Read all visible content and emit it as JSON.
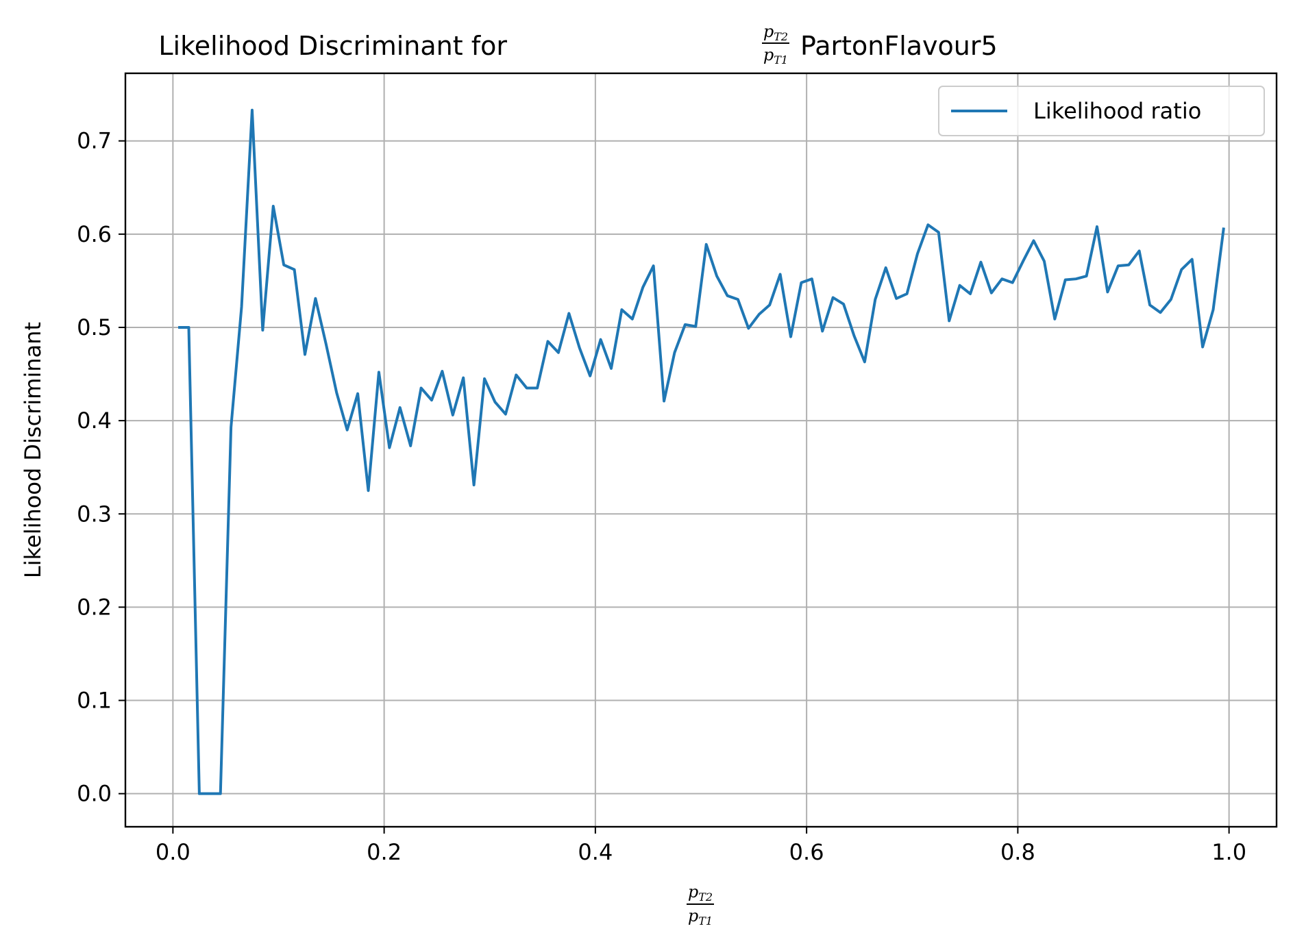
{
  "chart_data": {
    "type": "line",
    "title_prefix": "Likelihood Discriminant for",
    "title_suffix": "PartonFlavour5",
    "fraction": {
      "numerator": "p",
      "numerator_sub": "T2",
      "denominator": "p",
      "denominator_sub": "T1"
    },
    "xlabel_fraction": {
      "numerator": "p",
      "numerator_sub": "T2",
      "denominator": "p",
      "denominator_sub": "T1"
    },
    "ylabel": "Likelihood Discriminant",
    "xlim": [
      -0.045,
      1.045
    ],
    "ylim": [
      -0.0355,
      0.7725
    ],
    "xticks": [
      0.0,
      0.2,
      0.4,
      0.6,
      0.8,
      1.0
    ],
    "xtick_labels": [
      "0.0",
      "0.2",
      "0.4",
      "0.6",
      "0.8",
      "1.0"
    ],
    "yticks": [
      0.0,
      0.1,
      0.2,
      0.3,
      0.4,
      0.5,
      0.6,
      0.7
    ],
    "ytick_labels": [
      "0.0",
      "0.1",
      "0.2",
      "0.3",
      "0.4",
      "0.5",
      "0.6",
      "0.7"
    ],
    "grid": true,
    "legend_position": "upper right",
    "series": [
      {
        "name": "Likelihood ratio",
        "color": "#1f77b4",
        "x": [
          0.005,
          0.015,
          0.025,
          0.035,
          0.045,
          0.055,
          0.065,
          0.075,
          0.085,
          0.095,
          0.105,
          0.115,
          0.125,
          0.135,
          0.145,
          0.155,
          0.165,
          0.175,
          0.185,
          0.195,
          0.205,
          0.215,
          0.225,
          0.235,
          0.245,
          0.255,
          0.265,
          0.275,
          0.285,
          0.295,
          0.305,
          0.315,
          0.325,
          0.335,
          0.345,
          0.355,
          0.365,
          0.375,
          0.385,
          0.395,
          0.405,
          0.415,
          0.425,
          0.435,
          0.445,
          0.455,
          0.465,
          0.475,
          0.485,
          0.495,
          0.505,
          0.515,
          0.525,
          0.535,
          0.545,
          0.555,
          0.565,
          0.575,
          0.585,
          0.595,
          0.605,
          0.615,
          0.625,
          0.635,
          0.645,
          0.655,
          0.665,
          0.675,
          0.685,
          0.695,
          0.705,
          0.715,
          0.725,
          0.735,
          0.745,
          0.755,
          0.765,
          0.775,
          0.785,
          0.795,
          0.805,
          0.815,
          0.825,
          0.835,
          0.845,
          0.855,
          0.865,
          0.875,
          0.885,
          0.895,
          0.905,
          0.915,
          0.925,
          0.935,
          0.945,
          0.955,
          0.965,
          0.975,
          0.985,
          0.995
        ],
        "y": [
          0.5,
          0.5,
          0.0,
          0.0,
          0.0,
          0.393,
          0.522,
          0.733,
          0.497,
          0.63,
          0.567,
          0.562,
          0.471,
          0.531,
          0.482,
          0.43,
          0.39,
          0.429,
          0.325,
          0.452,
          0.371,
          0.414,
          0.373,
          0.435,
          0.422,
          0.453,
          0.406,
          0.446,
          0.331,
          0.445,
          0.42,
          0.407,
          0.449,
          0.435,
          0.435,
          0.485,
          0.473,
          0.515,
          0.478,
          0.448,
          0.487,
          0.456,
          0.519,
          0.509,
          0.543,
          0.566,
          0.421,
          0.473,
          0.503,
          0.501,
          0.589,
          0.555,
          0.534,
          0.53,
          0.499,
          0.514,
          0.524,
          0.557,
          0.49,
          0.548,
          0.552,
          0.496,
          0.532,
          0.525,
          0.491,
          0.463,
          0.53,
          0.564,
          0.531,
          0.536,
          0.579,
          0.61,
          0.602,
          0.507,
          0.545,
          0.536,
          0.57,
          0.537,
          0.552,
          0.548,
          0.571,
          0.593,
          0.571,
          0.509,
          0.551,
          0.552,
          0.555,
          0.608,
          0.538,
          0.566,
          0.567,
          0.582,
          0.524,
          0.516,
          0.53,
          0.562,
          0.573,
          0.479,
          0.519,
          0.607
        ]
      }
    ]
  }
}
